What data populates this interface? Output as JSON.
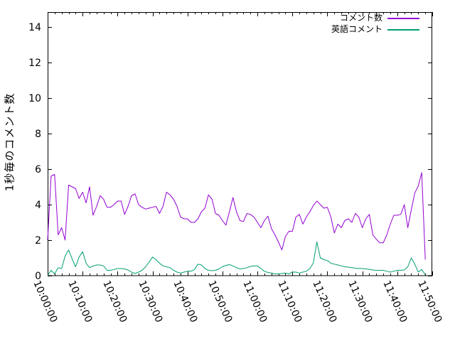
{
  "chart_data": {
    "type": "line",
    "title": "",
    "xlabel": "",
    "ylabel": "1秒毎のコメント数",
    "grid": false,
    "legend_position": "top-right-inside",
    "x_start": "10:00:00",
    "x_interval_seconds": 60,
    "x_tick_labels": [
      "10:00:00",
      "10:10:00",
      "10:20:00",
      "10:30:00",
      "10:40:00",
      "10:50:00",
      "11:00:00",
      "11:10:00",
      "11:20:00",
      "11:30:00",
      "11:40:00",
      "11:50:00"
    ],
    "y_ticks": [
      0,
      2,
      4,
      6,
      8,
      10,
      12,
      14
    ],
    "ylim": [
      0,
      14.85
    ],
    "xlim_minutes": [
      0,
      110
    ],
    "axis_color": "#000000",
    "background_color": "#ffffff",
    "series": [
      {
        "name": "コメント数",
        "color": "#9400d3",
        "values": [
          2.0,
          5.6,
          5.7,
          2.3,
          2.7,
          2.0,
          5.1,
          5.0,
          4.9,
          4.35,
          4.7,
          4.1,
          5.0,
          3.4,
          3.9,
          4.5,
          4.3,
          3.85,
          3.85,
          4.0,
          4.2,
          4.2,
          3.45,
          3.9,
          4.5,
          4.6,
          4.0,
          3.85,
          3.75,
          3.8,
          3.85,
          3.9,
          3.5,
          3.9,
          4.7,
          4.55,
          4.3,
          3.9,
          3.3,
          3.2,
          3.2,
          3.0,
          3.0,
          3.2,
          3.6,
          3.8,
          4.55,
          4.3,
          3.5,
          3.4,
          3.1,
          2.85,
          3.6,
          4.4,
          3.6,
          3.1,
          3.05,
          3.5,
          3.45,
          3.3,
          3.0,
          2.7,
          3.1,
          3.35,
          2.65,
          2.3,
          1.9,
          1.45,
          2.2,
          2.5,
          2.5,
          3.3,
          3.45,
          2.9,
          3.3,
          3.6,
          3.95,
          4.2,
          4.0,
          3.8,
          3.85,
          3.3,
          2.4,
          2.9,
          2.7,
          3.1,
          3.2,
          3.0,
          3.5,
          3.3,
          2.7,
          3.2,
          3.45,
          2.3,
          2.05,
          1.85,
          1.85,
          2.3,
          2.9,
          3.4,
          3.4,
          3.45,
          4.0,
          2.7,
          3.7,
          4.65,
          5.05,
          5.8,
          0.9
        ]
      },
      {
        "name": "英語コメント",
        "color": "#009e73",
        "values": [
          0.0,
          0.3,
          0.1,
          0.45,
          0.4,
          1.1,
          1.45,
          0.95,
          0.5,
          1.05,
          1.35,
          0.7,
          0.45,
          0.55,
          0.6,
          0.6,
          0.55,
          0.3,
          0.3,
          0.35,
          0.4,
          0.4,
          0.38,
          0.32,
          0.2,
          0.12,
          0.2,
          0.3,
          0.5,
          0.75,
          1.05,
          0.9,
          0.7,
          0.55,
          0.5,
          0.45,
          0.3,
          0.2,
          0.15,
          0.2,
          0.25,
          0.25,
          0.35,
          0.65,
          0.6,
          0.4,
          0.3,
          0.28,
          0.3,
          0.38,
          0.5,
          0.58,
          0.62,
          0.55,
          0.45,
          0.38,
          0.4,
          0.45,
          0.52,
          0.55,
          0.55,
          0.4,
          0.25,
          0.18,
          0.15,
          0.1,
          0.1,
          0.12,
          0.15,
          0.1,
          0.2,
          0.2,
          0.15,
          0.2,
          0.25,
          0.4,
          0.72,
          1.9,
          1.0,
          0.9,
          0.85,
          0.7,
          0.65,
          0.6,
          0.55,
          0.5,
          0.48,
          0.45,
          0.42,
          0.4,
          0.4,
          0.38,
          0.35,
          0.32,
          0.3,
          0.3,
          0.3,
          0.25,
          0.2,
          0.25,
          0.3,
          0.3,
          0.32,
          0.5,
          1.0,
          0.65,
          0.2,
          0.35,
          0.05
        ]
      }
    ]
  }
}
